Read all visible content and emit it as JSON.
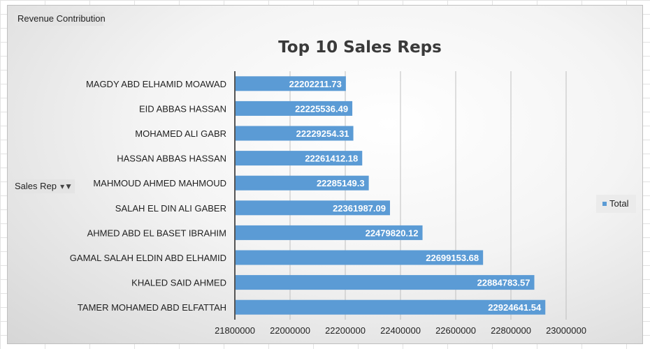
{
  "field_buttons": {
    "chart_title_field": "Revenue Contribution",
    "row_field": "Sales Rep",
    "row_field_icon": "filter-dropdown-icon"
  },
  "colors": {
    "bar": "#5b9bd5",
    "gridline": "#bfbfbf",
    "axis": "#555555"
  },
  "chart_data": {
    "type": "bar",
    "orientation": "horizontal",
    "title": "Top 10 Sales Reps",
    "xlabel": "",
    "ylabel": "",
    "categories": [
      "MAGDY ABD ELHAMID MOAWAD",
      "EID ABBAS HASSAN",
      "MOHAMED ALI GABR",
      "HASSAN ABBAS HASSAN",
      "MAHMOUD AHMED MAHMOUD",
      "SALAH EL DIN ALI GABER",
      "AHMED ABD EL BASET IBRAHIM",
      "GAMAL SALAH ELDIN ABD ELHAMID",
      "KHALED SAID AHMED",
      "TAMER MOHAMED ABD ELFATTAH"
    ],
    "series": [
      {
        "name": "Total",
        "values": [
          22202211.73,
          22225536.49,
          22229254.31,
          22261412.18,
          22285149.3,
          22361987.09,
          22479820.12,
          22699153.68,
          22884783.57,
          22924641.54
        ],
        "labels": [
          "22202211.73",
          "22225536.49",
          "22229254.31",
          "22261412.18",
          "22285149.3",
          "22361987.09",
          "22479820.12",
          "22699153.68",
          "22884783.57",
          "22924641.54"
        ]
      }
    ],
    "xlim": [
      21800000,
      23000000
    ],
    "ticks": [
      21800000,
      22000000,
      22200000,
      22400000,
      22600000,
      22800000,
      23000000
    ],
    "tick_labels": [
      "21800000",
      "22000000",
      "22200000",
      "22400000",
      "22600000",
      "22800000",
      "23000000"
    ],
    "grid": true,
    "legend": "right"
  }
}
